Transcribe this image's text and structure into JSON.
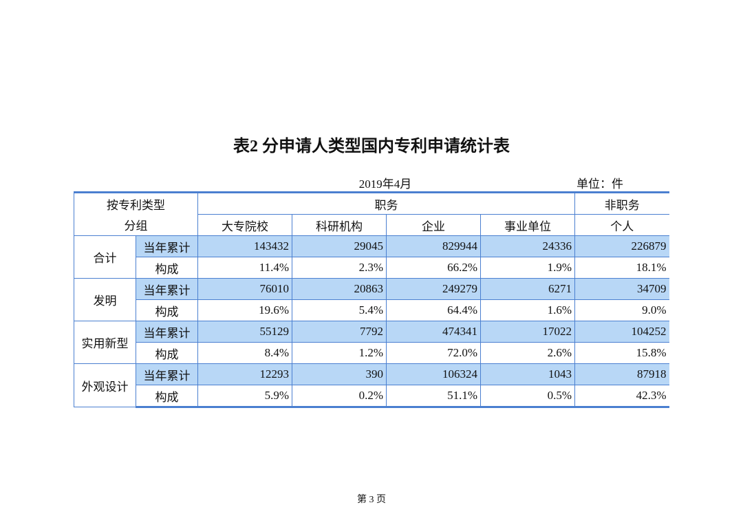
{
  "title": "表2  分申请人类型国内专利申请统计表",
  "date": "2019年4月",
  "unit": "单位：件",
  "header": {
    "group_label_1": "按专利类型",
    "group_label_2": "分组",
    "service": "职务",
    "non_service": "非职务",
    "columns": [
      "大专院校",
      "科研机构",
      "企业",
      "事业单位",
      "个人"
    ]
  },
  "groups": [
    {
      "name": "合计",
      "rows": [
        {
          "label": "当年累计",
          "values": [
            "143432",
            "29045",
            "829944",
            "24336",
            "226879"
          ]
        },
        {
          "label": "构成",
          "values": [
            "11.4%",
            "2.3%",
            "66.2%",
            "1.9%",
            "18.1%"
          ]
        }
      ]
    },
    {
      "name": "发明",
      "rows": [
        {
          "label": "当年累计",
          "values": [
            "76010",
            "20863",
            "249279",
            "6271",
            "34709"
          ]
        },
        {
          "label": "构成",
          "values": [
            "19.6%",
            "5.4%",
            "64.4%",
            "1.6%",
            "9.0%"
          ]
        }
      ]
    },
    {
      "name": "实用新型",
      "rows": [
        {
          "label": "当年累计",
          "values": [
            "55129",
            "7792",
            "474341",
            "17022",
            "104252"
          ]
        },
        {
          "label": "构成",
          "values": [
            "8.4%",
            "1.2%",
            "72.0%",
            "2.6%",
            "15.8%"
          ]
        }
      ]
    },
    {
      "name": "外观设计",
      "rows": [
        {
          "label": "当年累计",
          "values": [
            "12293",
            "390",
            "106324",
            "1043",
            "87918"
          ]
        },
        {
          "label": "构成",
          "values": [
            "5.9%",
            "0.2%",
            "51.1%",
            "0.5%",
            "42.3%"
          ]
        }
      ]
    }
  ],
  "footer": "第 3 页"
}
